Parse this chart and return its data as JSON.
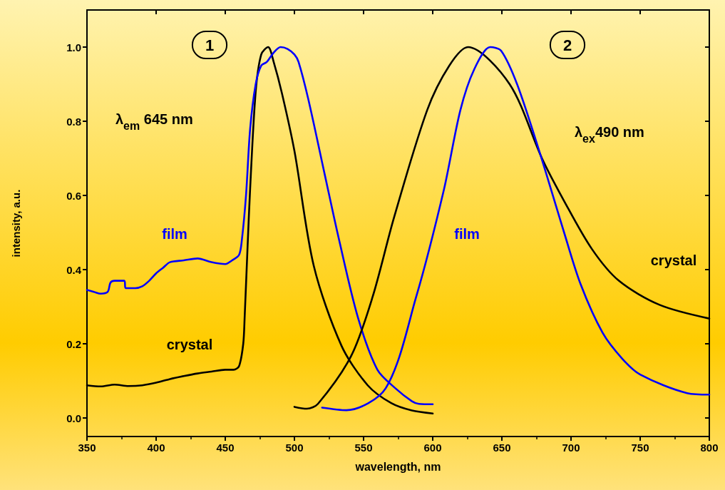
{
  "chart_data": {
    "type": "line",
    "xlabel": "wavelength, nm",
    "ylabel": "intensity, a.u.",
    "xlim": [
      350,
      800
    ],
    "xticks": [
      350,
      400,
      450,
      500,
      550,
      600,
      650,
      700,
      750,
      800
    ],
    "ylim": [
      -0.05,
      1.1
    ],
    "yticks": [
      {
        "value": 0,
        "label": "0.0"
      },
      {
        "value": 0.2,
        "label": "0.2"
      },
      {
        "value": 0.4,
        "label": "0.4"
      },
      {
        "value": 0.6,
        "label": "0.6"
      },
      {
        "value": 0.8,
        "label": "0.8"
      },
      {
        "value": 1,
        "label": "1.0"
      }
    ],
    "grid": false,
    "marker": "none",
    "line_style": "solid",
    "series": [
      {
        "name": "crystal",
        "color": "#000000",
        "x": [
          350,
          360,
          370,
          380,
          390,
          400,
          410,
          420,
          430,
          440,
          450,
          456,
          460,
          463,
          464,
          466,
          468,
          472,
          476,
          481,
          485,
          491,
          500,
          514,
          534,
          553,
          570,
          585,
          600
        ],
        "values": [
          0.088,
          0.085,
          0.09,
          0.086,
          0.088,
          0.095,
          0.105,
          0.113,
          0.12,
          0.125,
          0.13,
          0.13,
          0.14,
          0.2,
          0.27,
          0.45,
          0.62,
          0.88,
          0.98,
          1.0,
          0.96,
          0.875,
          0.72,
          0.41,
          0.195,
          0.088,
          0.04,
          0.02,
          0.012
        ]
      },
      {
        "name": "film",
        "color": "#0000ff",
        "x": [
          350,
          355,
          360,
          365,
          367,
          370,
          377,
          378,
          385,
          390,
          395,
          400,
          405,
          410,
          420,
          430,
          440,
          450,
          455,
          460,
          462,
          465,
          468,
          472,
          476,
          480,
          485,
          490,
          495,
          500,
          503,
          510,
          522,
          532,
          546,
          560,
          573,
          585,
          590,
          600
        ],
        "values": [
          0.345,
          0.34,
          0.335,
          0.34,
          0.365,
          0.37,
          0.37,
          0.35,
          0.35,
          0.355,
          0.37,
          0.39,
          0.405,
          0.42,
          0.425,
          0.43,
          0.42,
          0.415,
          0.425,
          0.44,
          0.48,
          0.6,
          0.78,
          0.9,
          0.95,
          0.96,
          0.985,
          1.0,
          0.995,
          0.98,
          0.96,
          0.86,
          0.655,
          0.485,
          0.27,
          0.13,
          0.08,
          0.045,
          0.038,
          0.037
        ]
      },
      {
        "name": "crystal",
        "color": "#000000",
        "x": [
          500,
          509,
          517,
          541,
          556.5,
          572,
          596,
          612,
          625.5,
          655.6,
          679,
          695,
          715,
          734.6,
          764,
          800
        ],
        "values": [
          0.03,
          0.025,
          0.038,
          0.167,
          0.326,
          0.54,
          0.83,
          0.95,
          1.0,
          0.9,
          0.7,
          0.585,
          0.456,
          0.37,
          0.305,
          0.268
        ]
      },
      {
        "name": "film",
        "color": "#0000ff",
        "x": [
          520,
          537.6,
          566,
          588,
          608,
          620,
          630,
          641.6,
          649.5,
          661,
          677,
          695,
          707,
          722.8,
          737,
          750,
          784,
          800
        ],
        "values": [
          0.028,
          0.021,
          0.08,
          0.326,
          0.614,
          0.83,
          0.94,
          1.0,
          0.99,
          0.9,
          0.72,
          0.5,
          0.36,
          0.23,
          0.16,
          0.117,
          0.067,
          0.063
        ]
      }
    ],
    "annotations": [
      "1",
      "2",
      "λ$_{em}$ 645 nm",
      "λ$_{ex}$490 nm"
    ]
  }
}
